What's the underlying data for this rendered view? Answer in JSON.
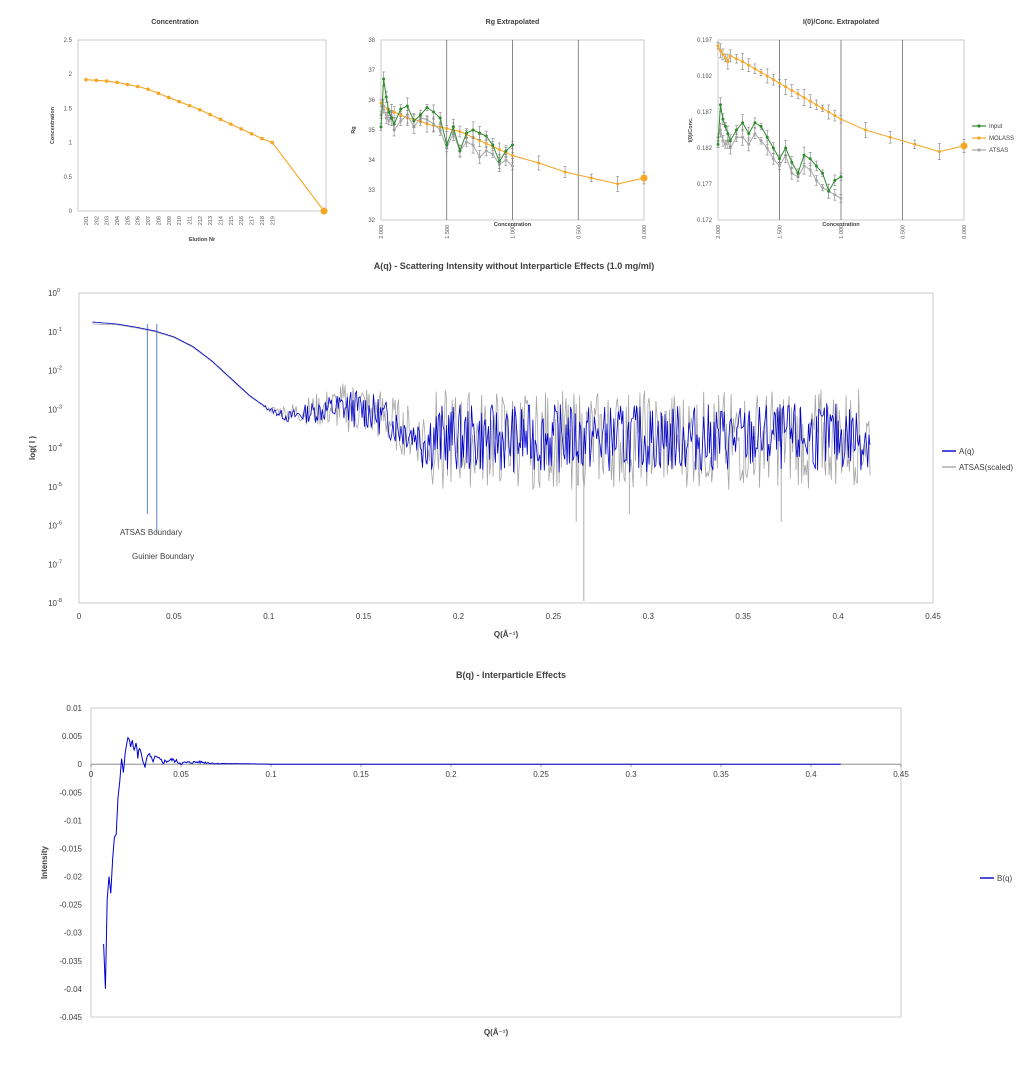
{
  "colors": {
    "orange": "#f5a623",
    "green": "#2e8b2e",
    "gray": "#a6a6a6",
    "blue": "#0000cc",
    "axis": "#7f7f7f",
    "steel": "#4472c4"
  },
  "chart_data": [
    {
      "id": "concentration",
      "type": "line",
      "title": "Concentration",
      "xlabel": "Elution Nr",
      "ylabel": "Concentration",
      "ylim": [
        0,
        2.5
      ],
      "yticks": [
        "0",
        "0.5",
        "1",
        "1.5",
        "2",
        "2.5"
      ],
      "categories": [
        "201",
        "202",
        "203",
        "204",
        "205",
        "206",
        "207",
        "208",
        "209",
        "210",
        "211",
        "212",
        "213",
        "214",
        "215",
        "216",
        "217",
        "218",
        "219"
      ],
      "series": [
        {
          "values": [
            1.92,
            1.91,
            1.9,
            1.88,
            1.85,
            1.82,
            1.78,
            1.72,
            1.66,
            1.6,
            1.54,
            1.48,
            1.41,
            1.34,
            1.27,
            1.2,
            1.13,
            1.06,
            1.0
          ],
          "extension": [
            0.8,
            0.6,
            0.4,
            0.2,
            0.0
          ]
        }
      ]
    },
    {
      "id": "rg",
      "type": "line",
      "title": "Rg Extrapolated",
      "xlabel": "Concentration",
      "ylabel": "Rg",
      "xlim": [
        2.0,
        0.0
      ],
      "ylim": [
        32,
        38
      ],
      "xticks": [
        "2.000",
        "1.500",
        "1.000",
        "0.500",
        "0.000"
      ],
      "yticks": [
        "32",
        "33",
        "34",
        "35",
        "36",
        "37",
        "38"
      ],
      "series": [
        {
          "x": [
            2.0,
            1.95,
            1.9,
            1.85,
            1.8,
            1.75,
            1.7,
            1.65,
            1.6,
            1.55,
            1.5,
            1.45,
            1.4,
            1.35,
            1.3,
            1.25,
            1.2,
            1.15,
            1.1,
            1.05,
            1.0,
            0.8,
            0.6,
            0.4,
            0.2,
            0.0
          ],
          "y": [
            35.9,
            35.7,
            35.6,
            35.5,
            35.4,
            35.35,
            35.3,
            35.2,
            35.15,
            35.1,
            35.05,
            35.0,
            34.95,
            34.85,
            34.75,
            34.65,
            34.55,
            34.45,
            34.35,
            34.25,
            34.15,
            33.9,
            33.6,
            33.4,
            33.2,
            33.4
          ]
        },
        {
          "x": [
            2.0,
            1.98,
            1.96,
            1.94,
            1.92,
            1.9,
            1.85,
            1.8,
            1.75,
            1.7,
            1.65,
            1.6,
            1.55,
            1.5,
            1.45,
            1.4,
            1.35,
            1.3,
            1.25,
            1.2,
            1.15,
            1.1,
            1.05,
            1.0
          ],
          "y": [
            35.1,
            36.7,
            36.1,
            35.6,
            35.4,
            35.2,
            35.7,
            35.8,
            35.3,
            35.5,
            35.75,
            35.6,
            35.4,
            34.5,
            35.1,
            34.3,
            34.9,
            35.0,
            34.9,
            34.8,
            34.5,
            33.95,
            34.3,
            34.5
          ]
        },
        {
          "x": [
            2.0,
            1.98,
            1.96,
            1.94,
            1.92,
            1.9,
            1.85,
            1.8,
            1.75,
            1.7,
            1.65,
            1.6,
            1.55,
            1.5,
            1.45,
            1.4,
            1.35,
            1.3,
            1.25,
            1.2,
            1.15,
            1.1,
            1.05,
            1.0
          ],
          "y": [
            35.5,
            35.8,
            35.4,
            35.3,
            35.6,
            35.0,
            35.3,
            35.5,
            35.1,
            35.4,
            35.35,
            35.2,
            35.0,
            34.4,
            34.9,
            34.3,
            34.6,
            34.5,
            34.1,
            34.3,
            34.2,
            33.85,
            34.0,
            33.8
          ]
        }
      ]
    },
    {
      "id": "i0conc",
      "type": "line",
      "title": "I(0)/Conc. Extrapolated",
      "xlabel": "Concentration",
      "ylabel": "I(0)/Conc.",
      "xlim": [
        2.0,
        0.0
      ],
      "ylim": [
        0.172,
        0.197
      ],
      "xticks": [
        "2.000",
        "1.500",
        "1.000",
        "0.500",
        "0.000"
      ],
      "yticks": [
        "0.172",
        "0.177",
        "0.182",
        "0.187",
        "0.192",
        "0.197"
      ],
      "legend": [
        "Input",
        "MOLASS",
        "ATSAS"
      ],
      "series": [
        {
          "name": "Input",
          "x": [
            2.0,
            1.98,
            1.96,
            1.94,
            1.92,
            1.9,
            1.85,
            1.8,
            1.75,
            1.7,
            1.65,
            1.6,
            1.55,
            1.5,
            1.45,
            1.4,
            1.35,
            1.3,
            1.25,
            1.2,
            1.15,
            1.1,
            1.05,
            1.0
          ],
          "y": [
            0.1825,
            0.188,
            0.186,
            0.185,
            0.184,
            0.183,
            0.1845,
            0.1855,
            0.184,
            0.1855,
            0.185,
            0.1835,
            0.182,
            0.1805,
            0.182,
            0.18,
            0.1785,
            0.181,
            0.1805,
            0.1795,
            0.1785,
            0.176,
            0.1775,
            0.178
          ]
        },
        {
          "name": "MOLASS",
          "x": [
            2.0,
            1.98,
            1.96,
            1.94,
            1.92,
            1.9,
            1.85,
            1.8,
            1.75,
            1.7,
            1.65,
            1.6,
            1.55,
            1.5,
            1.45,
            1.4,
            1.35,
            1.3,
            1.25,
            1.2,
            1.15,
            1.1,
            1.05,
            1.0,
            0.8,
            0.6,
            0.4,
            0.2,
            0.0
          ],
          "y": [
            0.1962,
            0.1955,
            0.195,
            0.1945,
            0.194,
            0.1948,
            0.1944,
            0.194,
            0.1935,
            0.193,
            0.1925,
            0.192,
            0.1915,
            0.191,
            0.1905,
            0.19,
            0.1895,
            0.189,
            0.1885,
            0.188,
            0.1875,
            0.187,
            0.1865,
            0.186,
            0.1845,
            0.1835,
            0.1825,
            0.1815,
            0.1823
          ]
        },
        {
          "name": "ATSAS",
          "x": [
            2.0,
            1.98,
            1.96,
            1.94,
            1.92,
            1.9,
            1.85,
            1.8,
            1.75,
            1.7,
            1.65,
            1.6,
            1.55,
            1.5,
            1.45,
            1.4,
            1.35,
            1.3,
            1.25,
            1.2,
            1.15,
            1.1,
            1.05,
            1.0
          ],
          "y": [
            0.1835,
            0.1845,
            0.183,
            0.1825,
            0.183,
            0.182,
            0.1835,
            0.1835,
            0.1825,
            0.184,
            0.183,
            0.182,
            0.1805,
            0.1795,
            0.181,
            0.1785,
            0.178,
            0.1795,
            0.179,
            0.1775,
            0.1765,
            0.176,
            0.1755,
            0.175
          ]
        }
      ]
    },
    {
      "id": "aq",
      "type": "line",
      "title": "A(q) - Scattering Intensity without Interparticle Effects (1.0 mg/ml)",
      "xlabel": "Q(Å⁻¹)",
      "ylabel": "log( I )",
      "scale": "log",
      "xlim": [
        0,
        0.45
      ],
      "ylim": [
        1e-08,
        1
      ],
      "xticks": [
        "0",
        "0.05",
        "0.1",
        "0.15",
        "0.2",
        "0.25",
        "0.3",
        "0.35",
        "0.4",
        "0.45"
      ],
      "yticks_base": [
        "10",
        "10",
        "10",
        "10",
        "10",
        "10",
        "10",
        "10",
        "10"
      ],
      "yticks_exp": [
        "-8",
        "-7",
        "-6",
        "-5",
        "-4",
        "-3",
        "-2",
        "-1",
        "0"
      ],
      "legend": [
        "A(q)",
        "ATSAS(scaled)"
      ],
      "annotations": [
        "ATSAS Boundary",
        "Guinier Boundary"
      ],
      "boundaries": [
        0.036,
        0.041
      ],
      "series": [
        {
          "name": "A(q)",
          "x": [
            0.007,
            0.02,
            0.03,
            0.04,
            0.05,
            0.06,
            0.07,
            0.08,
            0.09,
            0.1,
            0.11,
            0.12,
            0.13,
            0.14,
            0.15,
            0.16,
            0.17,
            0.18,
            0.2,
            0.25,
            0.3,
            0.35,
            0.4,
            0.417
          ],
          "log10y": [
            -0.75,
            -0.8,
            -0.88,
            -0.98,
            -1.13,
            -1.38,
            -1.75,
            -2.2,
            -2.65,
            -3.0,
            -3.2,
            -3.1,
            -3.0,
            -2.95,
            -3.0,
            -3.2,
            -3.5,
            -3.7,
            -3.75,
            -3.75,
            -3.75,
            -3.75,
            -3.7,
            -3.7
          ]
        },
        {
          "name": "ATSAS(scaled)",
          "x": [
            0.007,
            0.02,
            0.03,
            0.04,
            0.05,
            0.06,
            0.07,
            0.08,
            0.09,
            0.1,
            0.11,
            0.12,
            0.13,
            0.14,
            0.15,
            0.16,
            0.17,
            0.18,
            0.2,
            0.25,
            0.3,
            0.35,
            0.4,
            0.417
          ],
          "log10y": [
            -0.8,
            -0.82,
            -0.9,
            -1.0,
            -1.15,
            -1.4,
            -1.77,
            -2.22,
            -2.67,
            -3.0,
            -3.1,
            -3.05,
            -3.0,
            -2.95,
            -3.0,
            -3.2,
            -3.5,
            -3.75,
            -3.8,
            -3.8,
            -3.8,
            -3.8,
            -3.75,
            -3.75
          ],
          "spikes": [
            [
              0.262,
              -5.9
            ],
            [
              0.266,
              -7.95
            ],
            [
              0.29,
              -5.7
            ],
            [
              0.37,
              -5.9
            ]
          ]
        }
      ]
    },
    {
      "id": "bq",
      "type": "line",
      "title": "B(q) - Interparticle Effects",
      "xlabel": "Q(Å⁻¹)",
      "ylabel": "Intensity",
      "xlim": [
        0,
        0.45
      ],
      "ylim": [
        -0.045,
        0.01
      ],
      "xticks": [
        "0",
        "0.05",
        "0.1",
        "0.15",
        "0.2",
        "0.25",
        "0.3",
        "0.35",
        "0.4",
        "0.45"
      ],
      "yticks": [
        "-0.045",
        "-0.04",
        "-0.035",
        "-0.03",
        "-0.025",
        "-0.02",
        "-0.015",
        "-0.01",
        "-0.005",
        "0",
        "0.005",
        "0.01"
      ],
      "legend": [
        "B(q)"
      ],
      "series": [
        {
          "name": "B(q)",
          "x": [
            0.007,
            0.008,
            0.009,
            0.01,
            0.011,
            0.012,
            0.013,
            0.014,
            0.015,
            0.016,
            0.017,
            0.018,
            0.019,
            0.02,
            0.021,
            0.022,
            0.023,
            0.024,
            0.025,
            0.026,
            0.027,
            0.028,
            0.03,
            0.032,
            0.034,
            0.036,
            0.04,
            0.045,
            0.05,
            0.06,
            0.07,
            0.08,
            0.1,
            0.2,
            0.3,
            0.417
          ],
          "y": [
            -0.032,
            -0.04,
            -0.024,
            -0.02,
            -0.023,
            -0.017,
            -0.013,
            -0.0125,
            -0.006,
            -0.003,
            0.001,
            -0.0015,
            0.002,
            0.004,
            0.0045,
            0.003,
            0.0048,
            0.002,
            0.0042,
            0.001,
            0.0032,
            0.0015,
            -0.0003,
            0.0018,
            0.0006,
            0.0012,
            0.0004,
            0.0008,
            0.0002,
            0.0004,
            0.0001,
            0.0001,
            0.0,
            0.0,
            0.0,
            0.0
          ]
        }
      ]
    }
  ]
}
